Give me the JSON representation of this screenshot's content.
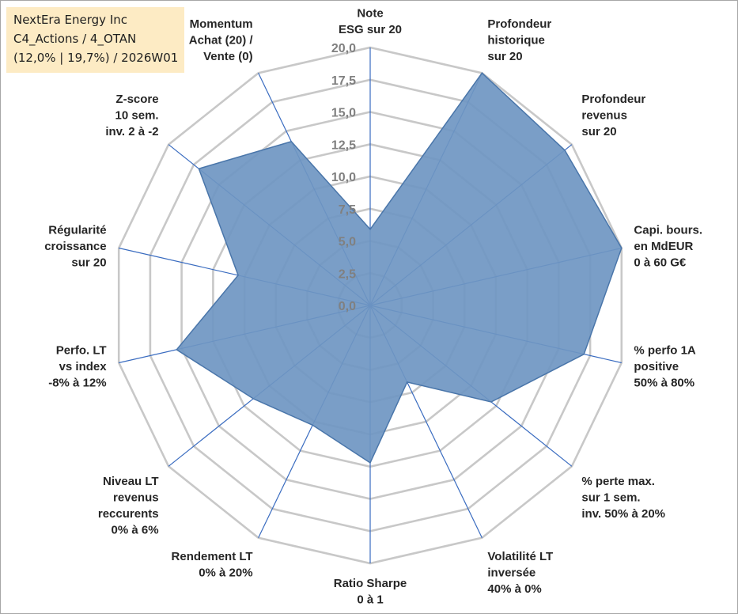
{
  "info_box": {
    "company": "NextEra Energy Inc",
    "category": "C4_Actions / 4_OTAN",
    "stats": "(12,0% | 19,7%) / 2026W01"
  },
  "chart_data": {
    "type": "radar",
    "title": "",
    "rmin": 0,
    "rmax": 20,
    "ring_step": 2.5,
    "tick_labels": [
      "0,0",
      "2,5",
      "5,0",
      "7,5",
      "10,0",
      "12,5",
      "15,0",
      "17,5",
      "20,0"
    ],
    "axes": [
      [
        "Note",
        "ESG sur 20"
      ],
      [
        "Profondeur",
        "historique",
        "sur 20"
      ],
      [
        "Profondeur",
        "revenus",
        "sur 20"
      ],
      [
        "Capi. bours.",
        "en MdEUR",
        "0 à 60 G€"
      ],
      [
        "% perfo 1A",
        "positive",
        "50% à 80%"
      ],
      [
        "% perte max.",
        "sur 1 sem.",
        "inv. 50% à 20%"
      ],
      [
        "Volatilité LT",
        "inversée",
        "40% à 0%"
      ],
      [
        "Ratio Sharpe",
        "0 à 1"
      ],
      [
        "Rendement LT",
        "0% à 20%"
      ],
      [
        "Niveau LT",
        "revenus",
        "reccurents",
        "0% à 6%"
      ],
      [
        "Perfo. LT",
        "vs index",
        "-8% à 12%"
      ],
      [
        "Régularité",
        "croissance",
        "sur 20"
      ],
      [
        "Z-score",
        "10 sem.",
        "inv. 2 à -2"
      ],
      [
        "Momentum",
        "Achat (20) /",
        "Vente (0)"
      ]
    ],
    "series": [
      {
        "name": "NextEra Energy Inc",
        "values": [
          5.9,
          20.0,
          19.3,
          20.0,
          17.0,
          12.0,
          6.6,
          12.2,
          10.3,
          11.6,
          15.4,
          10.5,
          17.0,
          14.1
        ],
        "fill": "#6f96c2",
        "stroke": "#4a76aa"
      }
    ],
    "colors": {
      "grid": "#c8c8c8",
      "spoke": "#3a6cc0",
      "label": "#262626",
      "tick": "#808080"
    }
  }
}
